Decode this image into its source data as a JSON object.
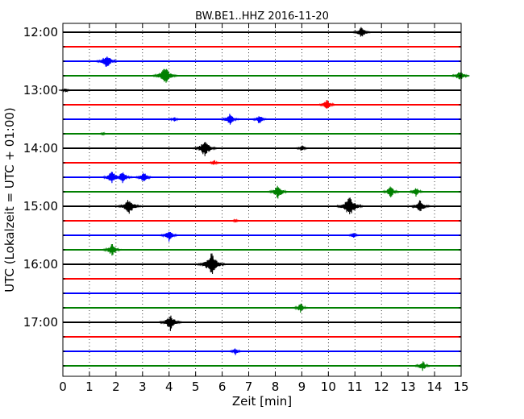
{
  "chart_data": {
    "type": "line",
    "title": "BW.BE1..HHZ 2016-11-20",
    "xlabel": "Zeit  [min]",
    "ylabel": "UTC (Lokalzeit = UTC + 01:00)",
    "xlim": [
      0,
      15
    ],
    "x_ticks": [
      0,
      1,
      2,
      3,
      4,
      5,
      6,
      7,
      8,
      9,
      10,
      11,
      12,
      13,
      14,
      15
    ],
    "x_tick_labels": [
      "0",
      "1",
      "2",
      "3",
      "4",
      "5",
      "6",
      "7",
      "8",
      "9",
      "10",
      "11",
      "12",
      "13",
      "14",
      "15"
    ],
    "y_tick_labels": [
      "12:00",
      "13:00",
      "14:00",
      "15:00",
      "16:00",
      "17:00"
    ],
    "grid": true,
    "grid_style": "dotted vertical lines at each minute",
    "trace_colors": [
      "#000000",
      "#ff0000",
      "#0000ff",
      "#008000"
    ],
    "series": [
      {
        "start": "12:00",
        "events": [
          [
            11.25,
            1.0
          ]
        ]
      },
      {
        "start": "12:15",
        "events": []
      },
      {
        "start": "12:30",
        "events": [
          [
            1.65,
            1.3
          ]
        ]
      },
      {
        "start": "12:45",
        "events": [
          [
            3.85,
            1.6
          ],
          [
            14.95,
            1.0
          ]
        ]
      },
      {
        "start": "13:00",
        "events": [
          [
            0.1,
            0.4
          ]
        ]
      },
      {
        "start": "13:15",
        "events": [
          [
            9.95,
            0.9
          ]
        ]
      },
      {
        "start": "13:30",
        "events": [
          [
            4.2,
            0.5
          ],
          [
            6.3,
            1.0
          ],
          [
            7.4,
            0.8
          ]
        ]
      },
      {
        "start": "13:45",
        "events": [
          [
            1.5,
            0.3
          ]
        ]
      },
      {
        "start": "14:00",
        "events": [
          [
            5.35,
            1.5
          ],
          [
            9.0,
            0.6
          ]
        ]
      },
      {
        "start": "14:15",
        "events": [
          [
            5.7,
            0.5
          ]
        ]
      },
      {
        "start": "14:30",
        "events": [
          [
            1.85,
            1.2
          ],
          [
            2.25,
            1.1
          ],
          [
            3.05,
            0.9
          ]
        ]
      },
      {
        "start": "14:45",
        "events": [
          [
            8.1,
            1.2
          ],
          [
            12.35,
            1.0
          ],
          [
            13.3,
            0.8
          ]
        ]
      },
      {
        "start": "15:00",
        "events": [
          [
            2.5,
            1.5
          ],
          [
            10.8,
            1.8
          ],
          [
            13.45,
            1.2
          ]
        ]
      },
      {
        "start": "15:15",
        "events": [
          [
            6.5,
            0.3
          ]
        ]
      },
      {
        "start": "15:30",
        "events": [
          [
            4.0,
            1.0
          ],
          [
            10.95,
            0.5
          ]
        ]
      },
      {
        "start": "15:45",
        "events": [
          [
            1.85,
            1.1
          ]
        ]
      },
      {
        "start": "16:00",
        "events": [
          [
            5.6,
            1.9
          ]
        ]
      },
      {
        "start": "16:15",
        "events": []
      },
      {
        "start": "16:30",
        "events": []
      },
      {
        "start": "16:45",
        "events": [
          [
            8.95,
            0.8
          ]
        ]
      },
      {
        "start": "17:00",
        "events": [
          [
            4.05,
            1.4
          ]
        ]
      },
      {
        "start": "17:15",
        "events": []
      },
      {
        "start": "17:30",
        "events": [
          [
            6.5,
            0.6
          ]
        ]
      },
      {
        "start": "17:45",
        "events": [
          [
            13.55,
            0.9
          ]
        ]
      }
    ]
  }
}
